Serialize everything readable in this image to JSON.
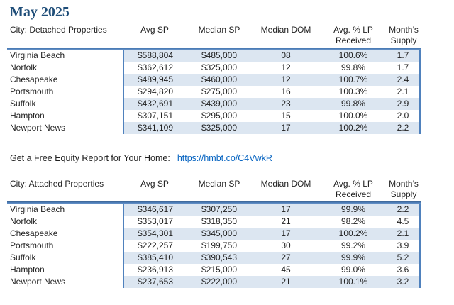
{
  "page": {
    "title": "May 2025"
  },
  "colors": {
    "accent": "#4F81BD",
    "accent2": "#3A618F",
    "band": "#DCE6F1",
    "title": "#1F4E79",
    "link": "#0563C1",
    "text": "#1f1f1f"
  },
  "link_line": {
    "label": "Get a Free Equity Report for Your Home:",
    "url_text": "https://hmbt.co/C4VwkR"
  },
  "tables": [
    {
      "name": "detached",
      "headers": [
        [
          "City: Detached Properties"
        ],
        [
          "Avg SP"
        ],
        [
          "Median SP"
        ],
        [
          "Median DOM"
        ],
        [
          "Avg. % LP",
          "Received"
        ],
        [
          "Month’s",
          "Supply"
        ]
      ],
      "rows": [
        [
          "Virginia Beach",
          "$588,804",
          "$485,000",
          "08",
          "100.6%",
          "1.7"
        ],
        [
          "Norfolk",
          "$362,612",
          "$325,000",
          "12",
          "99.8%",
          "1.7"
        ],
        [
          "Chesapeake",
          "$489,945",
          "$460,000",
          "12",
          "100.7%",
          "2.4"
        ],
        [
          "Portsmouth",
          "$294,820",
          "$275,000",
          "16",
          "100.3%",
          "2.1"
        ],
        [
          "Suffolk",
          "$432,691",
          "$439,000",
          "23",
          "99.8%",
          "2.9"
        ],
        [
          "Hampton",
          "$307,151",
          "$295,000",
          "15",
          "100.0%",
          "2.0"
        ],
        [
          "Newport News",
          "$341,109",
          "$325,000",
          "17",
          "100.2%",
          "2.2"
        ]
      ]
    },
    {
      "name": "attached",
      "headers": [
        [
          "City: Attached Properties"
        ],
        [
          "Avg SP"
        ],
        [
          "Median SP"
        ],
        [
          "Median DOM"
        ],
        [
          "Avg. % LP",
          "Received"
        ],
        [
          "Month’s",
          "Supply"
        ]
      ],
      "rows": [
        [
          "Virginia Beach",
          "$346,617",
          "$307,250",
          "17",
          "99.9%",
          "2.2"
        ],
        [
          "Norfolk",
          "$353,017",
          "$318,350",
          "21",
          "98.2%",
          "4.5"
        ],
        [
          "Chesapeake",
          "$354,301",
          "$345,000",
          "17",
          "100.2%",
          "2.1"
        ],
        [
          "Portsmouth",
          "$222,257",
          "$199,750",
          "30",
          "99.2%",
          "3.9"
        ],
        [
          "Suffolk",
          "$385,410",
          "$390,543",
          "27",
          "99.9%",
          "5.2"
        ],
        [
          "Hampton",
          "$236,913",
          "$215,000",
          "45",
          "99.0%",
          "3.6"
        ],
        [
          "Newport News",
          "$237,653",
          "$222,000",
          "21",
          "100.1%",
          "3.2"
        ]
      ]
    }
  ]
}
